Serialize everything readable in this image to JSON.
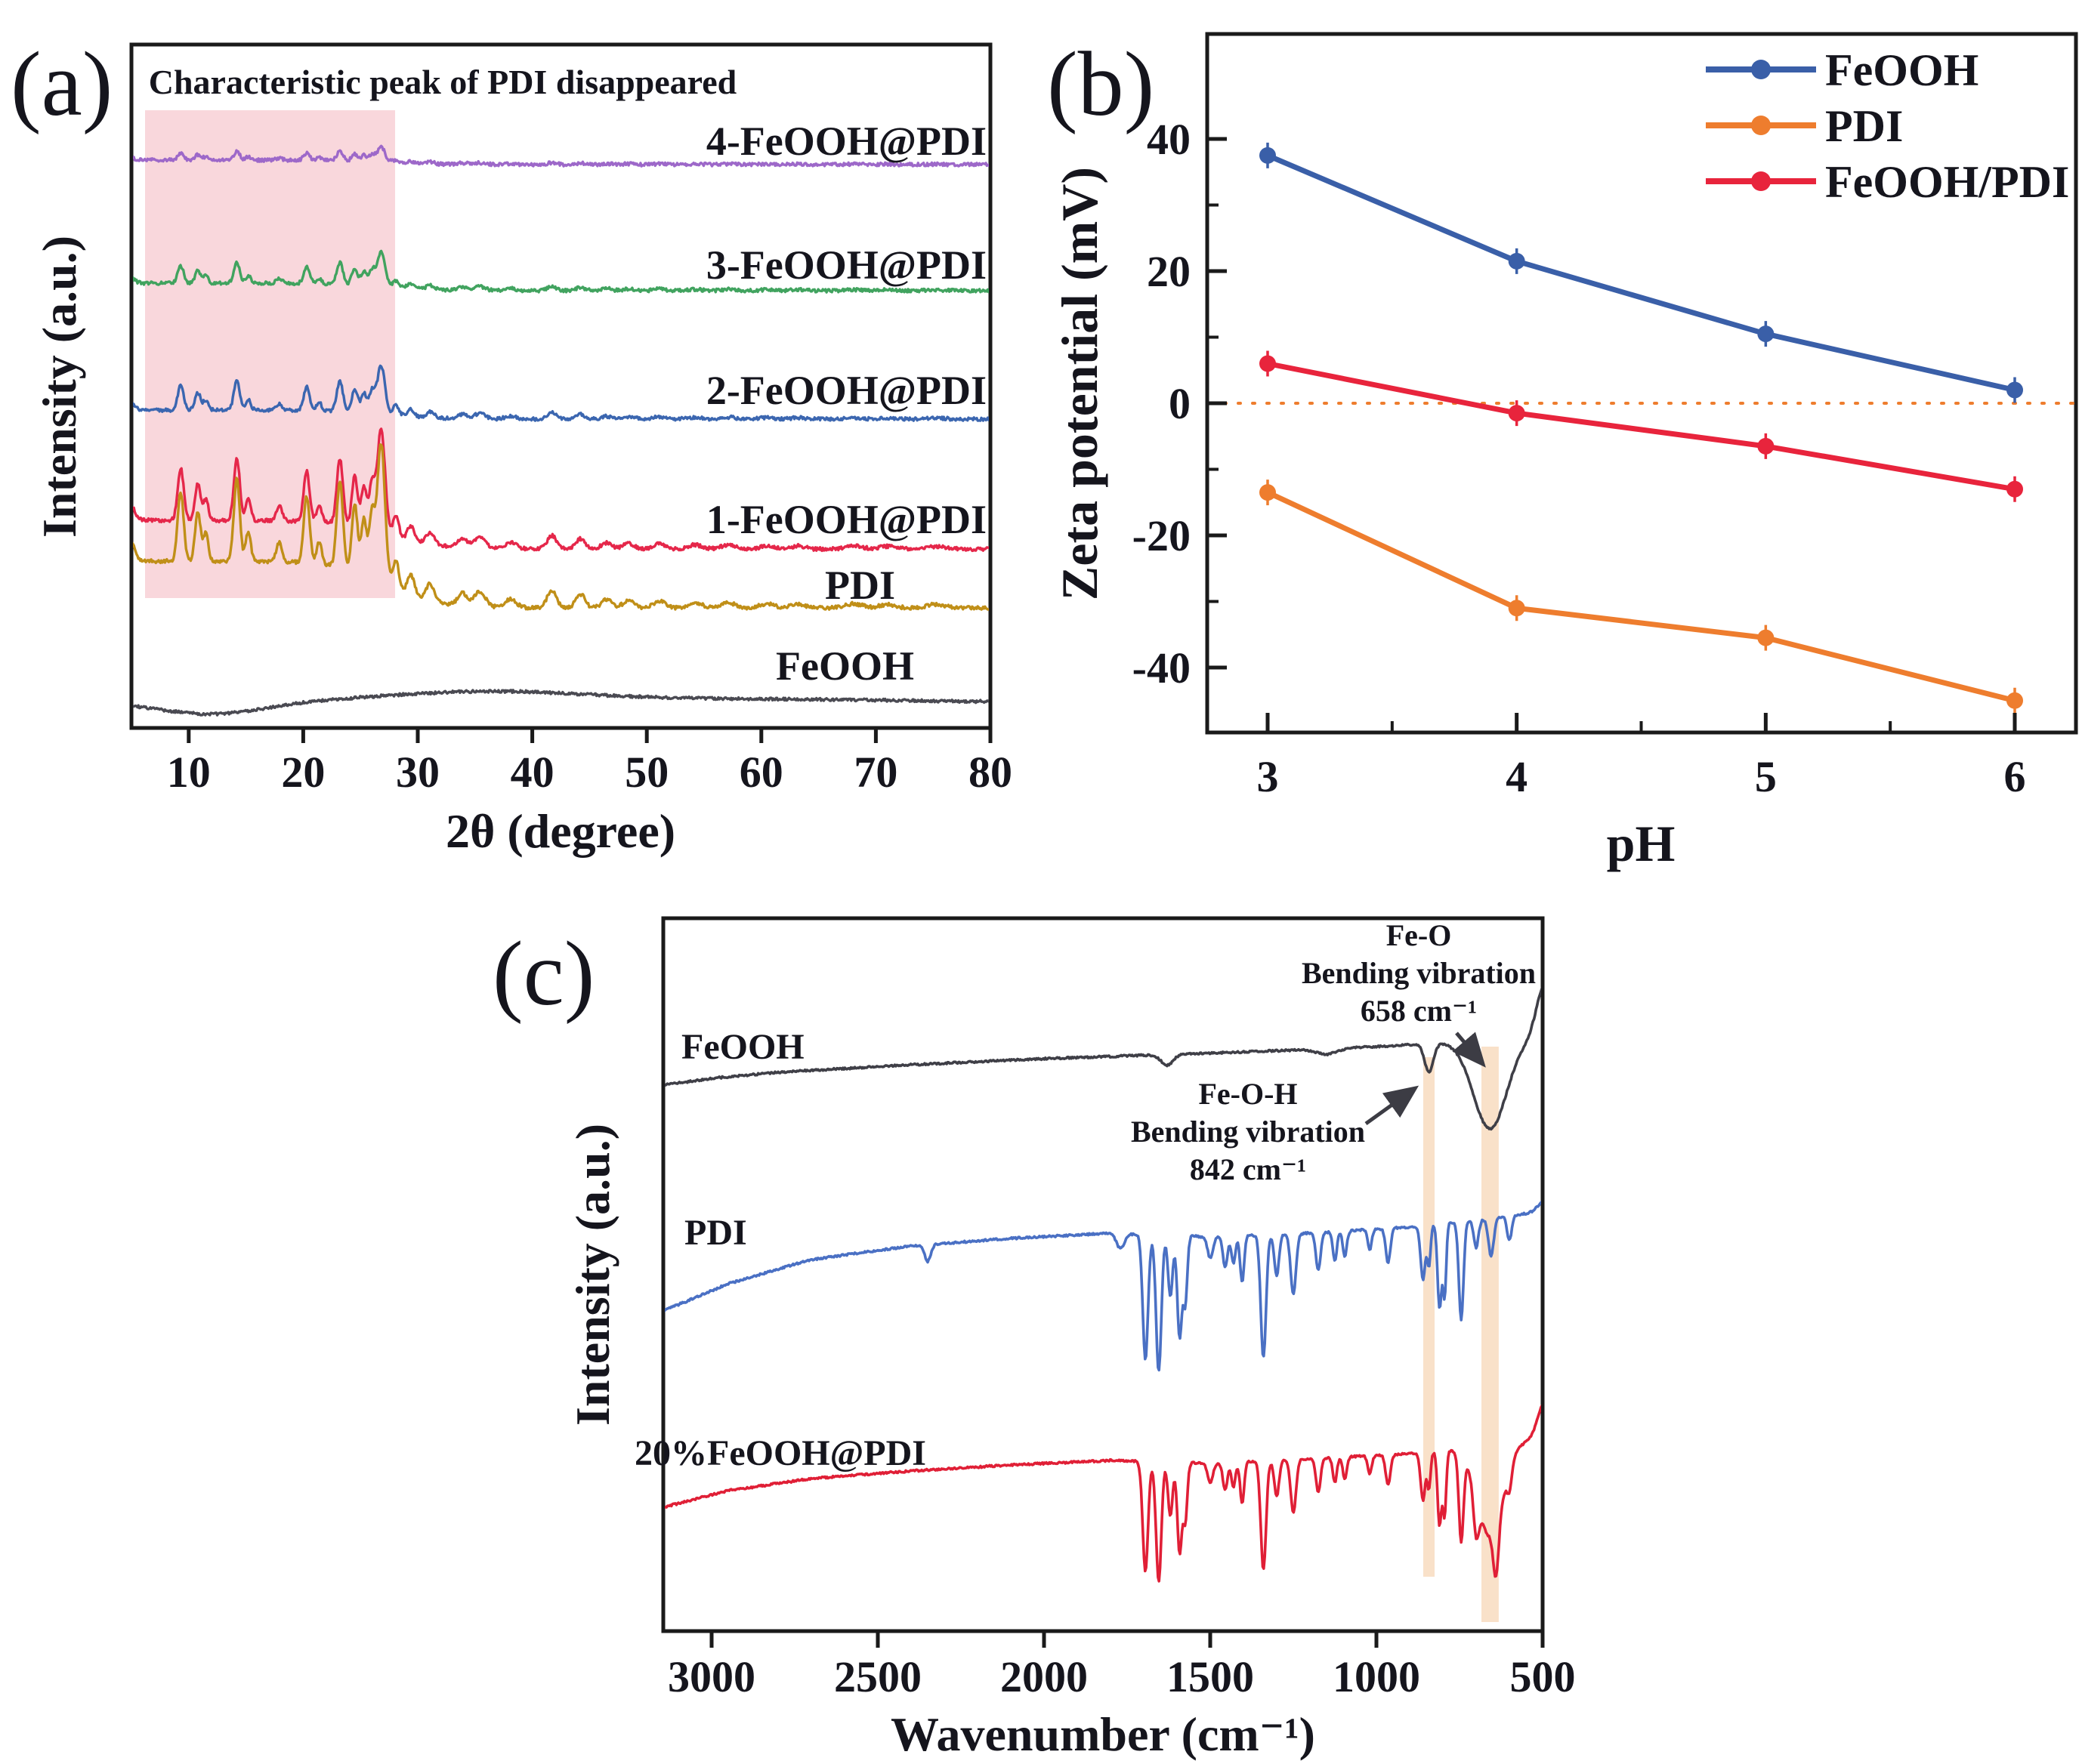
{
  "panels": {
    "a": {
      "label": "(a)",
      "title": "Characteristic peak of PDI disappeared",
      "title_color": "#ed1c2e",
      "xlabel": "2θ (degree)",
      "ylabel": "Intensity (a.u.)"
    },
    "b": {
      "label": "(b)",
      "xlabel": "pH",
      "ylabel": "Zeta potential (mV)"
    },
    "c": {
      "label": "(c)",
      "xlabel": "Wavenumber (cm⁻¹)",
      "ylabel": "Intensity (a.u.)",
      "ann_feo": {
        "l1": "Fe-O",
        "l2": "Bending vibration",
        "l3": "658 cm⁻¹"
      },
      "ann_feoh": {
        "l1": "Fe-O-H",
        "l2": "Bending vibration",
        "l3": "842 cm⁻¹"
      }
    }
  },
  "chart_data": [
    {
      "id": "a",
      "type": "line",
      "title": "Characteristic peak of PDI disappeared",
      "xlabel": "2θ (degree)",
      "ylabel": "Intensity (a.u.)",
      "xlim": [
        5,
        80
      ],
      "xticks": [
        10,
        20,
        30,
        40,
        50,
        60,
        70,
        80
      ],
      "grid": false,
      "highlight_region": {
        "x0": 6.2,
        "x1": 28.0,
        "color": "#f9d7dc",
        "note": "PDI characteristic peak range, shaded pink"
      },
      "pdi_peaks_2theta_relint_sigma": [
        [
          4.6,
          0.22,
          0.5
        ],
        [
          9.3,
          0.5,
          0.26
        ],
        [
          10.8,
          0.36,
          0.24
        ],
        [
          11.5,
          0.2,
          0.22
        ],
        [
          14.2,
          0.6,
          0.26
        ],
        [
          15.2,
          0.22,
          0.22
        ],
        [
          17.9,
          0.14,
          0.25
        ],
        [
          20.3,
          0.48,
          0.26
        ],
        [
          21.4,
          0.16,
          0.22
        ],
        [
          23.2,
          0.62,
          0.27
        ],
        [
          24.5,
          0.48,
          0.25
        ],
        [
          25.3,
          0.4,
          0.24
        ],
        [
          26.0,
          0.44,
          0.24
        ],
        [
          26.8,
          1.0,
          0.34
        ],
        [
          28.1,
          0.2,
          0.25
        ],
        [
          29.4,
          0.14,
          0.3
        ],
        [
          31.1,
          0.12,
          0.35
        ],
        [
          33.9,
          0.09,
          0.4
        ],
        [
          35.4,
          0.11,
          0.5
        ],
        [
          38.1,
          0.06,
          0.5
        ],
        [
          41.7,
          0.13,
          0.4
        ],
        [
          44.2,
          0.1,
          0.4
        ],
        [
          46.5,
          0.06,
          0.45
        ],
        [
          48.4,
          0.05,
          0.5
        ],
        [
          51.1,
          0.05,
          0.5
        ],
        [
          54.2,
          0.04,
          0.6
        ],
        [
          57.1,
          0.04,
          0.6
        ],
        [
          60.5,
          0.03,
          0.6
        ],
        [
          63.2,
          0.03,
          0.6
        ],
        [
          68.1,
          0.03,
          0.7
        ],
        [
          71.0,
          0.025,
          0.7
        ],
        [
          75.2,
          0.025,
          0.8
        ]
      ],
      "series": [
        {
          "name": "4-FeOOH@PDI",
          "color": "#9d68c9",
          "baseline": 218,
          "amp": 20,
          "bg": 6,
          "noise": 2.2
        },
        {
          "name": "3-FeOOH@PDI",
          "color": "#41a35f",
          "baseline": 385,
          "amp": 46,
          "bg": 10,
          "noise": 2.2
        },
        {
          "name": "2-FeOOH@PDI",
          "color": "#3b66b0",
          "baseline": 555,
          "amp": 64,
          "bg": 12,
          "noise": 2.2
        },
        {
          "name": "1-FeOOH@PDI",
          "color": "#e5274a",
          "baseline": 727,
          "amp": 138,
          "bg": 38,
          "noise": 2.4
        },
        {
          "name": "PDI",
          "color": "#c08f18",
          "baseline": 805,
          "amp": 182,
          "bg": 62,
          "noise": 2.4
        },
        {
          "name": "FeOOH",
          "color": "#4a4a52",
          "baseline": 930,
          "amp": 0,
          "bg": 0,
          "noise": 1.8,
          "broad": [
            [
              12,
              -16,
              4.5
            ],
            [
              36,
              14,
              9
            ],
            [
              60,
              4,
              12
            ]
          ]
        }
      ]
    },
    {
      "id": "b",
      "type": "line",
      "xlabel": "pH",
      "ylabel": "Zeta potential (mV)",
      "x": [
        3,
        4,
        5,
        6
      ],
      "xticks": [
        3,
        4,
        5,
        6
      ],
      "yticks": [
        40,
        20,
        0,
        -20,
        -40
      ],
      "ylim": [
        -50,
        56
      ],
      "legend_position": "top-right",
      "zero_line": {
        "y": 0,
        "color": "#ee7d2e",
        "style": "dotted"
      },
      "series": [
        {
          "name": "FeOOH",
          "color": "#3a5fa8",
          "values": [
            37.5,
            21.5,
            10.5,
            2
          ]
        },
        {
          "name": "PDI",
          "color": "#ee7d2e",
          "values": [
            -13.5,
            -31,
            -35.5,
            -45
          ]
        },
        {
          "name": "FeOOH/PDI",
          "color": "#e8243c",
          "values": [
            6,
            -1.5,
            -6.5,
            -13
          ]
        }
      ]
    },
    {
      "id": "c",
      "type": "line",
      "xlabel": "Wavenumber (cm⁻¹)",
      "ylabel": "Intensity (a.u.)",
      "x_axis_reversed": true,
      "xlim": [
        3145,
        500
      ],
      "xticks": [
        3000,
        2500,
        2000,
        1500,
        1000,
        500
      ],
      "bands_cm": [
        {
          "center": 842,
          "half_width": 17,
          "color": "#f5cfa8",
          "opacity": 0.62,
          "y0": 1400,
          "y1": 2088
        },
        {
          "center": 658,
          "half_width": 26,
          "color": "#f5cfa8",
          "opacity": 0.62,
          "y0": 1386,
          "y1": 2148
        }
      ],
      "annotations": [
        {
          "lines": [
            "Fe-O",
            "Bending vibration",
            "658 cm⁻¹"
          ],
          "points_to_cm": 658
        },
        {
          "lines": [
            "Fe-O-H",
            "Bending vibration",
            "842 cm⁻¹"
          ],
          "points_to_cm": 842
        }
      ],
      "series": [
        {
          "name": "FeOOH",
          "color": "#3f3f47",
          "noise": 1.2,
          "backbone": [
            [
              3145,
              1437
            ],
            [
              3000,
              1428
            ],
            [
              2800,
              1420
            ],
            [
              2400,
              1410
            ],
            [
              2000,
              1402
            ],
            [
              1600,
              1396
            ],
            [
              1200,
              1390
            ],
            [
              1000,
              1386
            ],
            [
              850,
              1382
            ],
            [
              700,
              1378
            ],
            [
              500,
              1372
            ]
          ],
          "dips_cm_depth_sigma": [
            [
              1630,
              14,
              18
            ],
            [
              1150,
              7,
              30
            ],
            [
              842,
              38,
              13
            ],
            [
              658,
              118,
              50
            ]
          ],
          "bumps_cm_h_sigma": [
            [
              492,
              70,
              25
            ]
          ]
        },
        {
          "name": "PDI",
          "color": "#4a70c4",
          "noise": 1.3,
          "backbone": [
            [
              3145,
              1736
            ],
            [
              2950,
              1700
            ],
            [
              2700,
              1668
            ],
            [
              2400,
              1650
            ],
            [
              2100,
              1640
            ],
            [
              1800,
              1633
            ],
            [
              1500,
              1638
            ],
            [
              1200,
              1633
            ],
            [
              900,
              1625
            ],
            [
              700,
              1616
            ],
            [
              500,
              1604
            ]
          ],
          "dips_cm_depth_sigma": [
            [
              2350,
              22,
              9
            ],
            [
              1770,
              20,
              12
            ],
            [
              1695,
              165,
              8
            ],
            [
              1655,
              180,
              8
            ],
            [
              1620,
              80,
              7
            ],
            [
              1592,
              135,
              7
            ],
            [
              1575,
              88,
              6
            ],
            [
              1500,
              28,
              8
            ],
            [
              1455,
              40,
              7
            ],
            [
              1430,
              36,
              6
            ],
            [
              1404,
              62,
              6
            ],
            [
              1340,
              162,
              8
            ],
            [
              1300,
              55,
              7
            ],
            [
              1250,
              80,
              8
            ],
            [
              1175,
              50,
              7
            ],
            [
              1125,
              38,
              6
            ],
            [
              1095,
              33,
              6
            ],
            [
              1020,
              27,
              6
            ],
            [
              965,
              45,
              7
            ],
            [
              860,
              72,
              7
            ],
            [
              842,
              54,
              5
            ],
            [
              810,
              112,
              6
            ],
            [
              795,
              95,
              5
            ],
            [
              745,
              130,
              7
            ],
            [
              700,
              36,
              7
            ],
            [
              655,
              50,
              8
            ],
            [
              600,
              32,
              7
            ]
          ],
          "bumps_cm_h_sigma": [
            [
              495,
              14,
              18
            ]
          ]
        },
        {
          "name": "20%FeOOH@PDI",
          "color": "#e01f36",
          "noise": 1.3,
          "backbone": [
            [
              3145,
              1996
            ],
            [
              2950,
              1974
            ],
            [
              2700,
              1958
            ],
            [
              2400,
              1948
            ],
            [
              2100,
              1940
            ],
            [
              1800,
              1934
            ],
            [
              1500,
              1938
            ],
            [
              1200,
              1932
            ],
            [
              900,
              1925
            ],
            [
              700,
              1918
            ],
            [
              500,
              1905
            ]
          ],
          "dips_cm_depth_sigma": [
            [
              1695,
              145,
              8
            ],
            [
              1655,
              158,
              8
            ],
            [
              1620,
              70,
              7
            ],
            [
              1592,
              119,
              7
            ],
            [
              1575,
              77,
              6
            ],
            [
              1500,
              25,
              8
            ],
            [
              1455,
              35,
              7
            ],
            [
              1430,
              32,
              6
            ],
            [
              1404,
              55,
              6
            ],
            [
              1340,
              143,
              8
            ],
            [
              1300,
              48,
              7
            ],
            [
              1250,
              70,
              8
            ],
            [
              1175,
              44,
              7
            ],
            [
              1125,
              33,
              6
            ],
            [
              1095,
              29,
              6
            ],
            [
              1020,
              24,
              6
            ],
            [
              965,
              40,
              7
            ],
            [
              860,
              63,
              7
            ],
            [
              842,
              48,
              5
            ],
            [
              810,
              98,
              6
            ],
            [
              795,
              84,
              5
            ],
            [
              745,
              114,
              7
            ],
            [
              700,
              55,
              8
            ],
            [
              658,
              118,
              38
            ],
            [
              640,
              68,
              8
            ],
            [
              600,
              28,
              7
            ]
          ],
          "bumps_cm_h_sigma": [
            [
              495,
              46,
              20
            ]
          ]
        }
      ]
    }
  ]
}
